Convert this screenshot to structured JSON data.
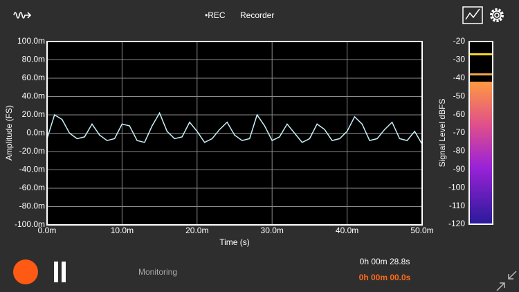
{
  "header": {
    "rec": "•REC",
    "title": "Recorder"
  },
  "chart_data": [
    {
      "type": "line",
      "xlabel": "Time (s)",
      "ylabel": "Amplitude (FS)",
      "x": [
        0,
        1,
        2,
        3,
        4,
        5,
        6,
        7,
        8,
        9,
        10,
        11,
        12,
        13,
        14,
        15,
        16,
        17,
        18,
        19,
        20,
        21,
        22,
        23,
        24,
        25,
        26,
        27,
        28,
        29,
        30,
        31,
        32,
        33,
        34,
        35,
        36,
        37,
        38,
        39,
        40,
        41,
        42,
        43,
        44,
        45,
        46,
        47,
        48,
        49,
        50
      ],
      "series": [
        {
          "color": "#c8f0f8",
          "values": [
            -6,
            20,
            15,
            0,
            -6,
            -4,
            10,
            -2,
            -8,
            -6,
            10,
            8,
            -8,
            -10,
            8,
            22,
            2,
            -6,
            -4,
            12,
            2,
            -10,
            -6,
            4,
            12,
            -2,
            -8,
            -6,
            20,
            8,
            -8,
            -4,
            10,
            0,
            -10,
            -6,
            10,
            4,
            -8,
            -6,
            2,
            18,
            10,
            -8,
            -6,
            4,
            12,
            -6,
            -8,
            2,
            -12
          ]
        }
      ],
      "xlim": [
        0,
        50
      ],
      "xticks": [
        {
          "value": 0,
          "label": "0.0m"
        },
        {
          "value": 10,
          "label": "10.0m"
        },
        {
          "value": 20,
          "label": "20.0m"
        },
        {
          "value": 30,
          "label": "30.0m"
        },
        {
          "value": 40,
          "label": "40.0m"
        },
        {
          "value": 50,
          "label": "50.0m"
        }
      ],
      "ylim": [
        -100,
        100
      ],
      "yticks": [
        {
          "value": 100,
          "label": "100.0m"
        },
        {
          "value": 80,
          "label": "80.0m"
        },
        {
          "value": 60,
          "label": "60.0m"
        },
        {
          "value": 40,
          "label": "40.0m"
        },
        {
          "value": 20,
          "label": "20.0m"
        },
        {
          "value": 0,
          "label": "0.0m"
        },
        {
          "value": -20,
          "label": "-20.0m"
        },
        {
          "value": -40,
          "label": "-40.0m"
        },
        {
          "value": -60,
          "label": "-60.0m"
        },
        {
          "value": -80,
          "label": "-80.0m"
        },
        {
          "value": -100,
          "label": "-100.0m"
        }
      ],
      "grid": true
    },
    {
      "type": "meter",
      "ylabel": "Signal Level dBFS",
      "ylim": [
        -20,
        -120
      ],
      "yticks": [
        -20,
        -30,
        -40,
        -50,
        -60,
        -70,
        -80,
        -90,
        -100,
        -110,
        -120
      ],
      "values": [
        -42
      ],
      "peak_lines": [
        {
          "value": -27,
          "color": "#f5d82a"
        },
        {
          "value": -38,
          "color": "#f3a64a"
        }
      ]
    }
  ],
  "footer": {
    "status": "Monitoring",
    "elapsed": "0h 00m 28.8s",
    "timer": "0h 00m 00.0s"
  }
}
